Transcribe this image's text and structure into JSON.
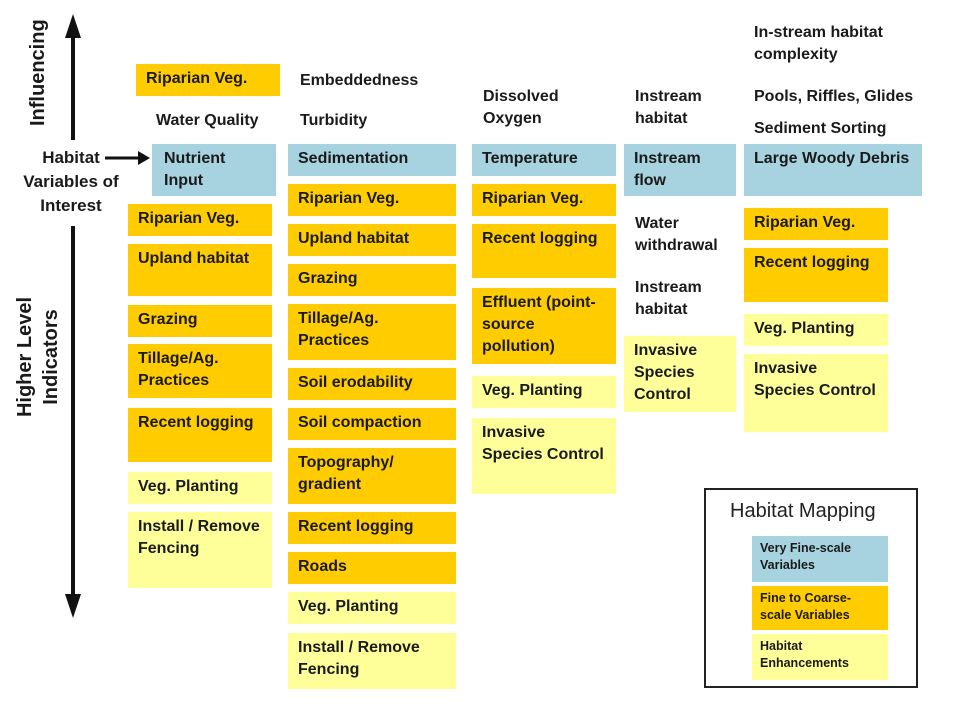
{
  "axis": {
    "top_label": "Influencing",
    "bottom_label": "Higher Level Indicators",
    "center_label": "Habitat Variables of Interest"
  },
  "col1": {
    "header1": "Riparian Veg.",
    "header2": "Water Quality",
    "key": "Nutrient Input",
    "items": [
      "Riparian Veg.",
      "Upland habitat",
      "Grazing",
      "Tillage/Ag. Practices",
      "Recent logging",
      "Veg. Planting",
      "Install / Remove Fencing"
    ]
  },
  "col2": {
    "header1": "Embeddedness",
    "header2": "Turbidity",
    "key": "Sedimentation",
    "items": [
      "Riparian Veg.",
      "Upland habitat",
      "Grazing",
      "Tillage/Ag. Practices",
      "Soil erodability",
      "Soil compaction",
      "Topography/ gradient",
      "Recent logging",
      "Roads",
      "Veg. Planting",
      "Install / Remove Fencing"
    ]
  },
  "col3": {
    "header1": "Dissolved Oxygen",
    "key": "Temperature",
    "items": [
      "Riparian Veg.",
      "Recent logging",
      "Effluent (point-source pollution)",
      "Veg. Planting",
      "Invasive Species Control"
    ]
  },
  "col4": {
    "header1": "Instream habitat",
    "key": "Instream flow",
    "labels": [
      "Water withdrawal",
      "Instream habitat"
    ],
    "items": [
      "Invasive Species Control"
    ]
  },
  "col5": {
    "header1": "In-stream habitat complexity",
    "header2": "Pools, Riffles, Glides",
    "header3": "Sediment Sorting",
    "key": "Large Woody Debris",
    "items": [
      "Riparian Veg.",
      "Recent logging",
      "Veg. Planting",
      "Invasive Species Control"
    ]
  },
  "legend": {
    "title": "Habitat Mapping",
    "entries": [
      "Very Fine-scale Variables",
      "Fine to Coarse-scale Variables",
      "Habitat Enhancements"
    ]
  },
  "colors": {
    "blue": "#a6d3df",
    "yellow": "#ffcc00",
    "light_yellow": "#ffff99"
  }
}
